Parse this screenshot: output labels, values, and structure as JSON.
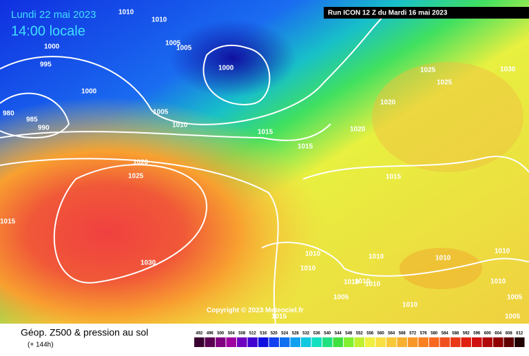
{
  "header": {
    "date": "Lundi 22 mai 2023",
    "time": "14:00 locale",
    "run": "Run ICON 12 Z du Mardi 16 mai 2023"
  },
  "isobar_labels": [
    "1010",
    "1010",
    "1000",
    "1005",
    "1005",
    "995",
    "1000",
    "1000",
    "980",
    "985",
    "990",
    "1005",
    "1010",
    "1015",
    "1015",
    "1020",
    "1025",
    "1015",
    "1030",
    "1025",
    "1030",
    "1025",
    "1020",
    "1020",
    "1015",
    "1010",
    "1010",
    "1010",
    "1010",
    "1010",
    "1010",
    "1010",
    "1010",
    "1010",
    "1005",
    "1010",
    "1005",
    "1005",
    "1015"
  ],
  "copyright": "Copyright © 2023 Meteociel.fr",
  "footer": {
    "title": "Géop. Z500 & pression au sol",
    "lead": "(+ 144h)"
  },
  "scale": [
    "492",
    "496",
    "500",
    "504",
    "508",
    "512",
    "516",
    "520",
    "524",
    "528",
    "532",
    "536",
    "540",
    "544",
    "548",
    "552",
    "556",
    "560",
    "564",
    "568",
    "572",
    "576",
    "580",
    "584",
    "588",
    "592",
    "596",
    "600",
    "604",
    "608",
    "612"
  ]
}
